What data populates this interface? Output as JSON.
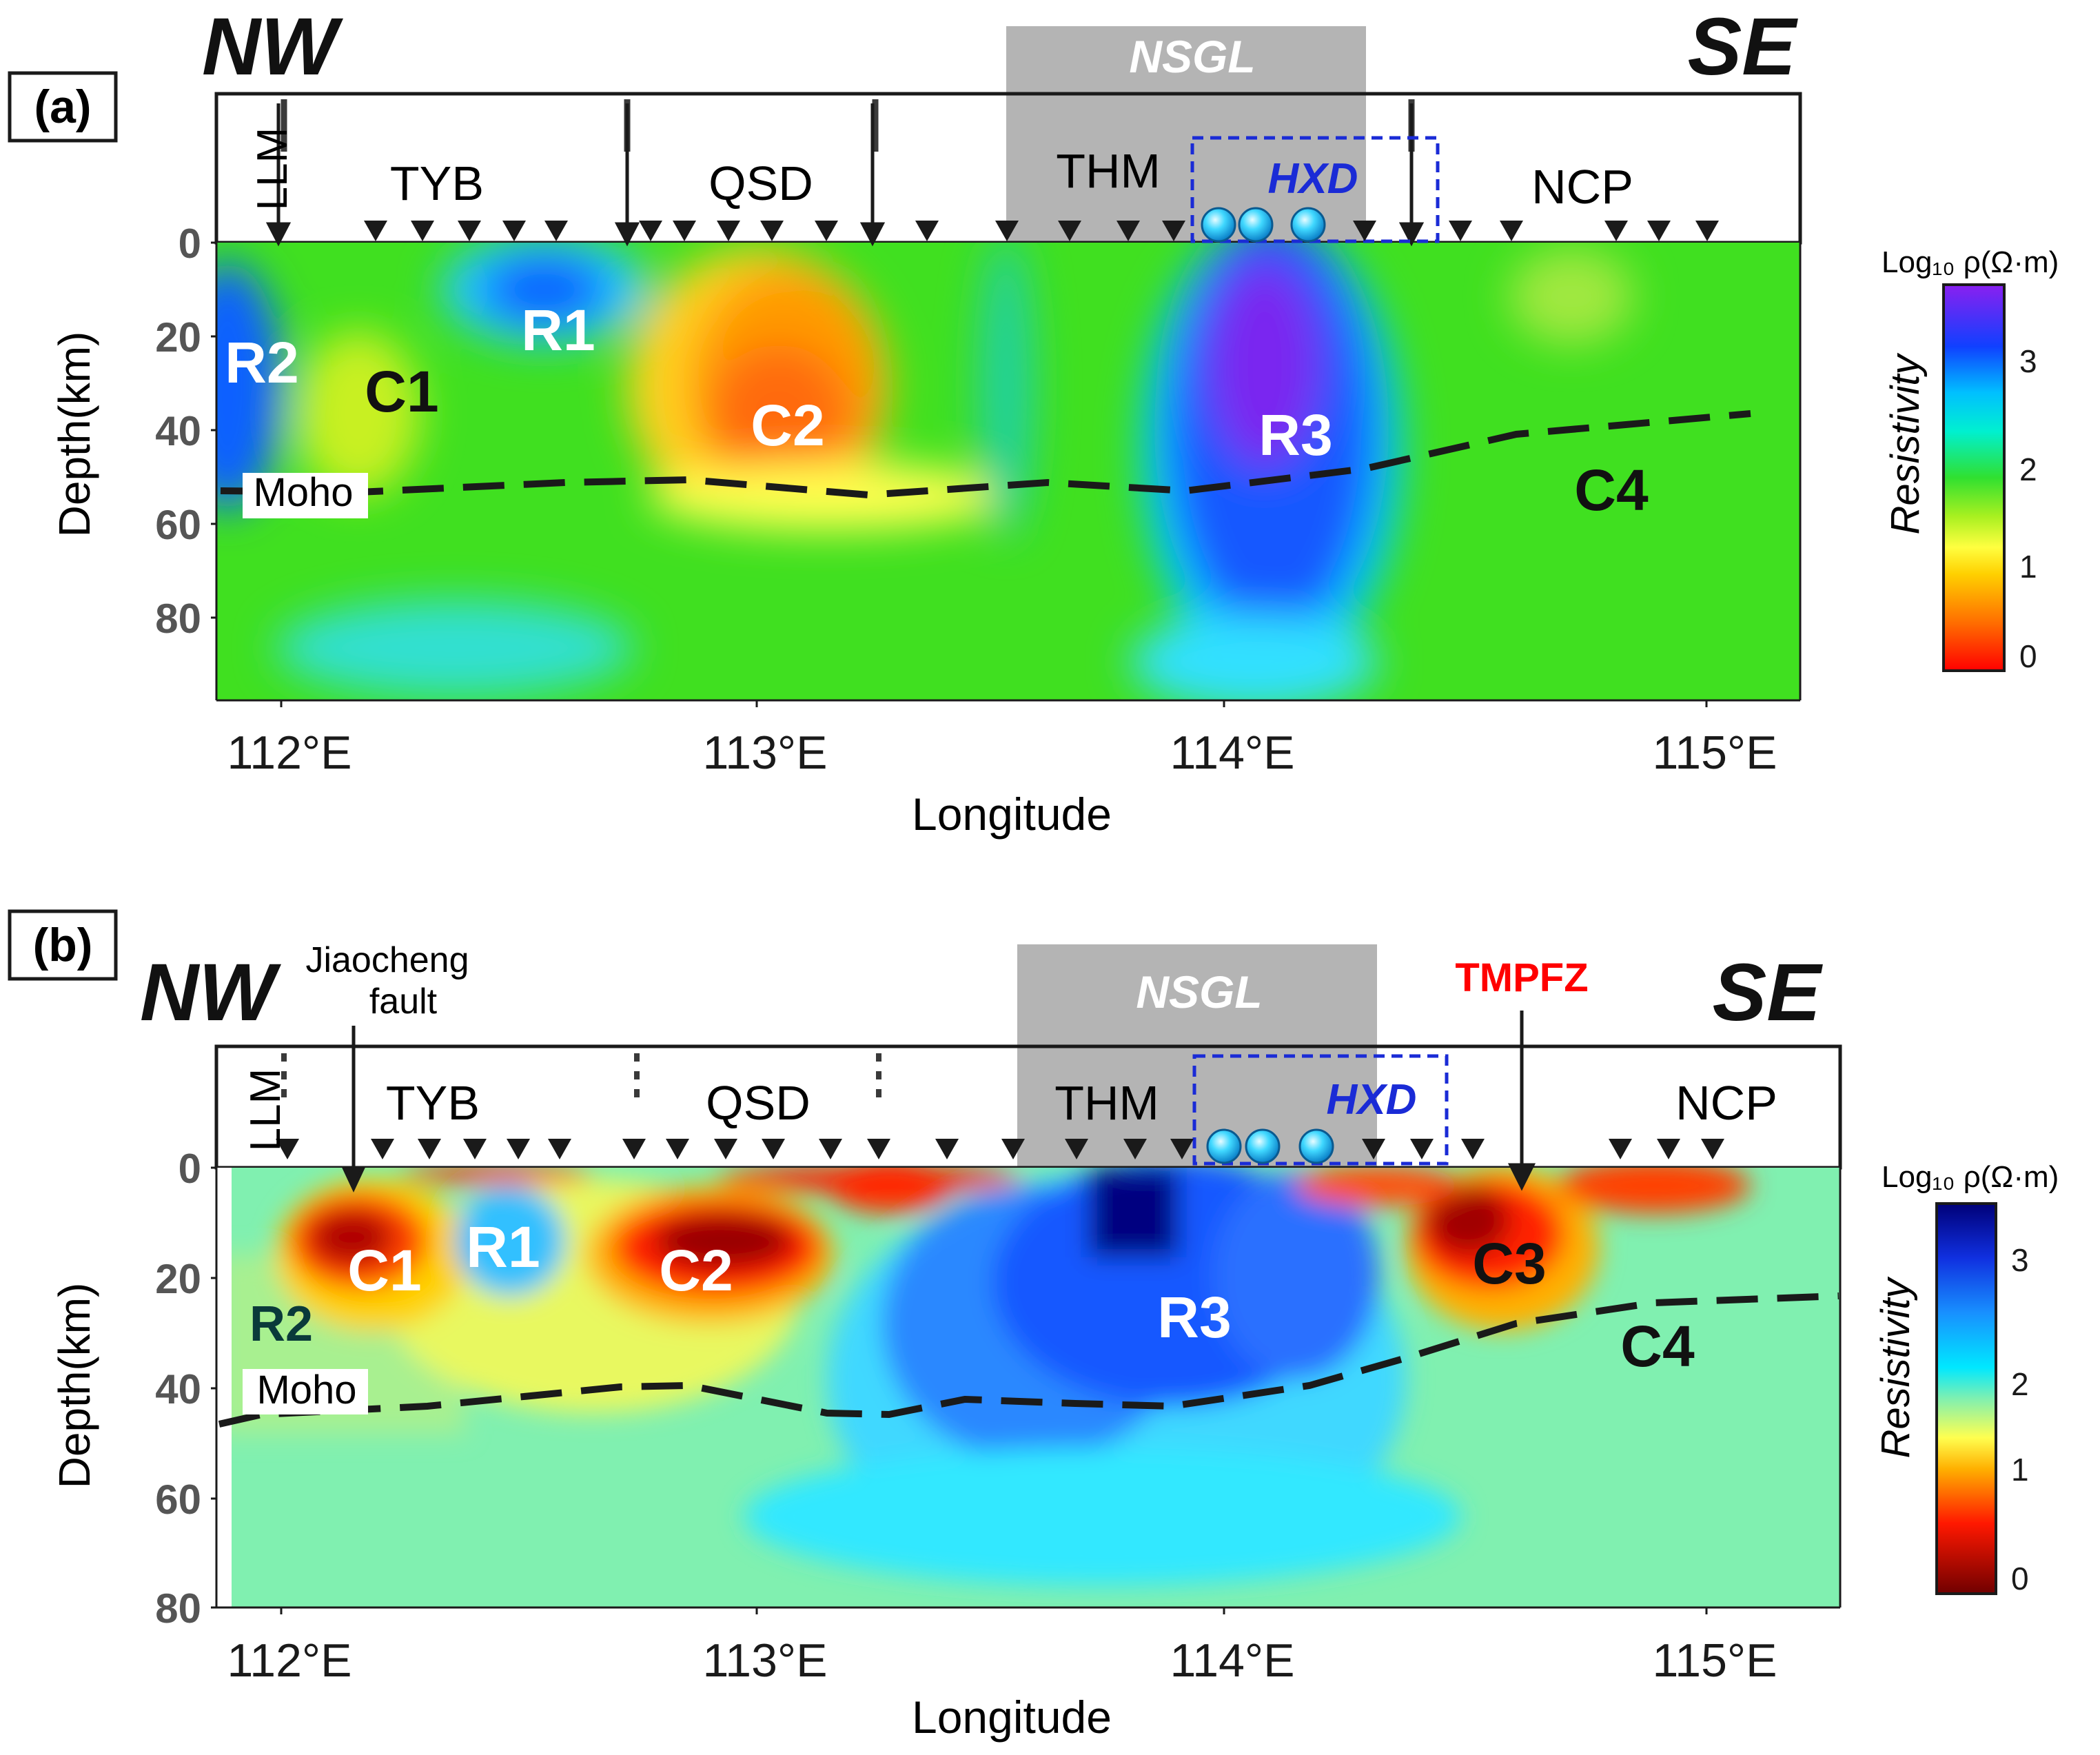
{
  "colors": {
    "resistivity_a": [
      "#ff2000",
      "#ff9000",
      "#ffff30",
      "#40e020",
      "#00e0ff",
      "#1050ff",
      "#8020ff"
    ],
    "resistivity_b": [
      "#7a0000",
      "#ff2000",
      "#ffe040",
      "#00e8ff",
      "#2060ff",
      "#000080"
    ],
    "nsgl_box": "#b4b4b4",
    "hxd_blue": "#1a2bd6",
    "tmpfz_red": "#ff0000",
    "moho_line": "#1a1a1a"
  },
  "panel_a": {
    "tag": "(a)",
    "nw": "NW",
    "se": "SE",
    "nsgl": "NSGL",
    "hxd": "HXD",
    "blocks": {
      "llm": "LLM",
      "tyb": "TYB",
      "qsd": "QSD",
      "thm": "THM",
      "ncp": "NCP"
    },
    "anomalies": {
      "r2": "R2",
      "c1": "C1",
      "r1": "R1",
      "c2": "C2",
      "r3": "R3",
      "c4": "C4"
    },
    "moho": "Moho",
    "ylabel": "Depth(km)",
    "xlabel": "Longitude",
    "yticks": [
      "0",
      "20",
      "40",
      "60",
      "80"
    ],
    "xticks": [
      "112°E",
      "113°E",
      "114°E",
      "115°E"
    ],
    "colorbar": {
      "title": "Log₁₀ ρ(Ω·m)",
      "label": "Resistivity",
      "ticks": [
        "3",
        "2",
        "1",
        "0"
      ]
    }
  },
  "panel_b": {
    "tag": "(b)",
    "nw": "NW",
    "se": "SE",
    "nsgl": "NSGL",
    "hxd": "HXD",
    "tmpfz": "TMPFZ",
    "fault_1": "Jiaocheng",
    "fault_2": "fault",
    "blocks": {
      "llm": "LLM",
      "tyb": "TYB",
      "qsd": "QSD",
      "thm": "THM",
      "ncp": "NCP"
    },
    "anomalies": {
      "r2": "R2",
      "c1": "C1",
      "r1": "R1",
      "c2": "C2",
      "r3": "R3",
      "c3": "C3",
      "c4": "C4"
    },
    "moho": "Moho",
    "ylabel": "Depth(km)",
    "xlabel": "Longitude",
    "yticks": [
      "0",
      "20",
      "40",
      "60",
      "80"
    ],
    "xticks": [
      "112°E",
      "113°E",
      "114°E",
      "115°E"
    ],
    "colorbar": {
      "title": "Log₁₀ ρ(Ω·m)",
      "label": "Resistivity",
      "ticks": [
        "3",
        "2",
        "1",
        "0"
      ]
    }
  }
}
